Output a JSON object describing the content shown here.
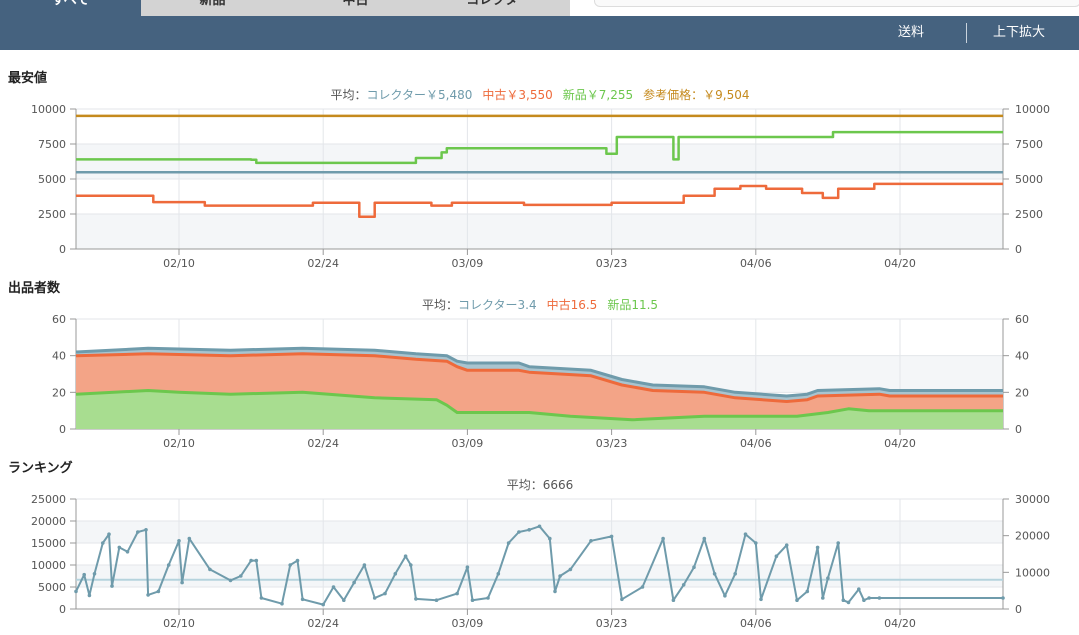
{
  "tabs": [
    "すべて",
    "新品",
    "中古",
    "コレクター"
  ],
  "nav": {
    "shipping_label": "送料",
    "zoom_label": "上下拡大"
  },
  "colors": {
    "nav_bg": "#45627f",
    "collector": "#6f9bab",
    "used": "#ee6a3b",
    "new": "#6cc74d",
    "reference": "#c58a1d",
    "ranking": "#6f9bab"
  },
  "x_ticks": [
    "02/10",
    "02/24",
    "03/09",
    "03/23",
    "04/06",
    "04/20"
  ],
  "price": {
    "title": "最安値",
    "legend_prefix": "平均：",
    "legend": [
      {
        "label": "コレクター￥5,480",
        "color": "#6f9bab"
      },
      {
        "label": "中古￥3,550",
        "color": "#ee6a3b"
      },
      {
        "label": "新品￥7,255",
        "color": "#6cc74d"
      },
      {
        "label": "参考価格：￥9,504",
        "color": "#c58a1d"
      }
    ],
    "y_ticks": [
      "10000",
      "7500",
      "5000",
      "2500",
      "0"
    ]
  },
  "sellers": {
    "title": "出品者数",
    "legend_prefix": "平均：",
    "legend": [
      {
        "label": "コレクター3.4",
        "color": "#6f9bab"
      },
      {
        "label": "中古16.5",
        "color": "#ee6a3b"
      },
      {
        "label": "新品11.5",
        "color": "#6cc74d"
      }
    ],
    "y_ticks": [
      "60",
      "40",
      "20",
      "0"
    ]
  },
  "ranking": {
    "title": "ランキング",
    "legend": "平均：6666",
    "y_ticks_left": [
      "25000",
      "20000",
      "15000",
      "10000",
      "5000",
      "0"
    ],
    "y_ticks_right": [
      "30000",
      "20000",
      "10000",
      "0"
    ]
  },
  "chart_data": [
    {
      "type": "line",
      "title": "最安値",
      "x_ticks": [
        "02/10",
        "02/24",
        "03/09",
        "03/23",
        "04/06",
        "04/20"
      ],
      "ylim": [
        0,
        10000
      ],
      "grid": true,
      "series": [
        {
          "name": "参考価格",
          "values": [
            [
              0,
              9504
            ],
            [
              90,
              9504
            ]
          ]
        },
        {
          "name": "新品",
          "values": [
            [
              0,
              6400
            ],
            [
              15,
              6400
            ],
            [
              17,
              6380
            ],
            [
              17.5,
              6150
            ],
            [
              32,
              6150
            ],
            [
              33,
              6500
            ],
            [
              35,
              6500
            ],
            [
              35.5,
              6900
            ],
            [
              36,
              7200
            ],
            [
              51,
              7200
            ],
            [
              51.5,
              6800
            ],
            [
              52,
              6800
            ],
            [
              52.5,
              8000
            ],
            [
              58,
              8000
            ],
            [
              58,
              6400
            ],
            [
              58.5,
              8000
            ],
            [
              73,
              8000
            ],
            [
              73.5,
              8350
            ],
            [
              90,
              8350
            ]
          ]
        },
        {
          "name": "コレクター",
          "values": [
            [
              0,
              5480
            ],
            [
              90,
              5480
            ]
          ]
        },
        {
          "name": "中古",
          "values": [
            [
              0,
              3800
            ],
            [
              7,
              3800
            ],
            [
              7.5,
              3350
            ],
            [
              12,
              3350
            ],
            [
              12.5,
              3100
            ],
            [
              22.5,
              3100
            ],
            [
              23,
              3300
            ],
            [
              27,
              3300
            ],
            [
              27.5,
              2300
            ],
            [
              28.5,
              2300
            ],
            [
              29,
              3300
            ],
            [
              34,
              3300
            ],
            [
              34.5,
              3100
            ],
            [
              36,
              3100
            ],
            [
              36.5,
              3300
            ],
            [
              43,
              3300
            ],
            [
              43.5,
              3150
            ],
            [
              51,
              3150
            ],
            [
              52,
              3300
            ],
            [
              58.5,
              3300
            ],
            [
              59,
              3800
            ],
            [
              61.5,
              3800
            ],
            [
              62,
              4300
            ],
            [
              64,
              4300
            ],
            [
              64.5,
              4500
            ],
            [
              66.5,
              4500
            ],
            [
              67,
              4300
            ],
            [
              70,
              4300
            ],
            [
              70.5,
              4000
            ],
            [
              72,
              4000
            ],
            [
              72.5,
              3650
            ],
            [
              73.5,
              3650
            ],
            [
              74,
              4300
            ],
            [
              77,
              4300
            ],
            [
              77.5,
              4650
            ],
            [
              90,
              4650
            ]
          ]
        }
      ]
    },
    {
      "type": "area",
      "title": "出品者数",
      "x_ticks": [
        "02/10",
        "02/24",
        "03/09",
        "03/23",
        "04/06",
        "04/20"
      ],
      "ylim": [
        0,
        60
      ],
      "grid": true,
      "series": [
        {
          "name": "コレクター",
          "values": [
            [
              0,
              42
            ],
            [
              7,
              44
            ],
            [
              15,
              43
            ],
            [
              22,
              44
            ],
            [
              29,
              43
            ],
            [
              33,
              41
            ],
            [
              36,
              40
            ],
            [
              37,
              37
            ],
            [
              38,
              36
            ],
            [
              43,
              36
            ],
            [
              44,
              34
            ],
            [
              50,
              32
            ],
            [
              53,
              27
            ],
            [
              56,
              24
            ],
            [
              61,
              23
            ],
            [
              64,
              20
            ],
            [
              69,
              18
            ],
            [
              71,
              19
            ],
            [
              72,
              21
            ],
            [
              78,
              22
            ],
            [
              79,
              21
            ],
            [
              90,
              21
            ]
          ]
        },
        {
          "name": "中古",
          "values": [
            [
              0,
              40
            ],
            [
              7,
              41
            ],
            [
              15,
              40
            ],
            [
              22,
              41
            ],
            [
              29,
              40
            ],
            [
              33,
              38
            ],
            [
              36,
              37
            ],
            [
              37,
              34
            ],
            [
              38,
              32
            ],
            [
              43,
              32
            ],
            [
              44,
              31
            ],
            [
              50,
              29
            ],
            [
              53,
              24
            ],
            [
              56,
              21
            ],
            [
              61,
              20
            ],
            [
              64,
              17
            ],
            [
              69,
              15
            ],
            [
              71,
              16
            ],
            [
              72,
              18
            ],
            [
              78,
              19
            ],
            [
              79,
              18
            ],
            [
              90,
              18
            ]
          ]
        },
        {
          "name": "新品",
          "values": [
            [
              0,
              19
            ],
            [
              7,
              21
            ],
            [
              10,
              20
            ],
            [
              15,
              19
            ],
            [
              22,
              20
            ],
            [
              29,
              17
            ],
            [
              35,
              16
            ],
            [
              36,
              13
            ],
            [
              37,
              9
            ],
            [
              44,
              9
            ],
            [
              48,
              7
            ],
            [
              54,
              5
            ],
            [
              61,
              7
            ],
            [
              70,
              7
            ],
            [
              73,
              9
            ],
            [
              75,
              11
            ],
            [
              77,
              10
            ],
            [
              90,
              10
            ]
          ]
        }
      ]
    },
    {
      "type": "line",
      "title": "ランキング",
      "x_ticks": [
        "02/10",
        "02/24",
        "03/09",
        "03/23",
        "04/06",
        "04/20"
      ],
      "ylim": [
        0,
        25000
      ],
      "y2lim": [
        0,
        30000
      ],
      "grid": true,
      "series": [
        {
          "name": "平均",
          "values": [
            [
              0,
              6666
            ],
            [
              90,
              6666
            ]
          ]
        },
        {
          "name": "ランキング",
          "values": [
            [
              0,
              4000
            ],
            [
              0.8,
              7800
            ],
            [
              1.3,
              3100
            ],
            [
              1.8,
              8000
            ],
            [
              2.6,
              15000
            ],
            [
              3.2,
              17000
            ],
            [
              3.5,
              5200
            ],
            [
              4.2,
              14000
            ],
            [
              5,
              13000
            ],
            [
              6,
              17500
            ],
            [
              6.8,
              18000
            ],
            [
              7,
              3200
            ],
            [
              8,
              4000
            ],
            [
              9,
              10000
            ],
            [
              10,
              15500
            ],
            [
              10.3,
              6000
            ],
            [
              11,
              16000
            ],
            [
              13,
              9000
            ],
            [
              15,
              6500
            ],
            [
              16,
              7500
            ],
            [
              17,
              11000
            ],
            [
              17.5,
              11000
            ],
            [
              18,
              2500
            ],
            [
              20,
              1200
            ],
            [
              20.8,
              10000
            ],
            [
              21.5,
              11000
            ],
            [
              22,
              2200
            ],
            [
              24,
              1000
            ],
            [
              25,
              5000
            ],
            [
              26,
              2000
            ],
            [
              27,
              6000
            ],
            [
              28,
              10000
            ],
            [
              29,
              2500
            ],
            [
              30,
              3500
            ],
            [
              31,
              8000
            ],
            [
              32,
              12000
            ],
            [
              32.5,
              10000
            ],
            [
              33,
              2300
            ],
            [
              35,
              2000
            ],
            [
              37,
              3500
            ],
            [
              38,
              9500
            ],
            [
              38.5,
              2000
            ],
            [
              40,
              2500
            ],
            [
              41,
              8000
            ],
            [
              42,
              15000
            ],
            [
              43,
              17500
            ],
            [
              44,
              18000
            ],
            [
              45,
              18800
            ],
            [
              46,
              16000
            ],
            [
              46.5,
              4000
            ],
            [
              47,
              7500
            ],
            [
              48,
              9000
            ],
            [
              50,
              15500
            ],
            [
              52,
              16500
            ],
            [
              53,
              2200
            ],
            [
              55,
              5000
            ],
            [
              57,
              16000
            ],
            [
              58,
              2000
            ],
            [
              59,
              5500
            ],
            [
              60,
              9500
            ],
            [
              61,
              16000
            ],
            [
              62,
              8000
            ],
            [
              63,
              3000
            ],
            [
              64,
              8000
            ],
            [
              65,
              17000
            ],
            [
              66,
              15000
            ],
            [
              66.5,
              2200
            ],
            [
              68,
              12000
            ],
            [
              69,
              14500
            ],
            [
              70,
              2000
            ],
            [
              71,
              4000
            ],
            [
              72,
              14000
            ],
            [
              72.5,
              2500
            ],
            [
              73,
              7000
            ],
            [
              74,
              15000
            ],
            [
              74.5,
              2000
            ],
            [
              75,
              1500
            ],
            [
              76,
              4500
            ],
            [
              76.5,
              2000
            ],
            [
              77,
              2500
            ],
            [
              78,
              2500
            ],
            [
              90,
              2500
            ]
          ]
        }
      ]
    }
  ]
}
